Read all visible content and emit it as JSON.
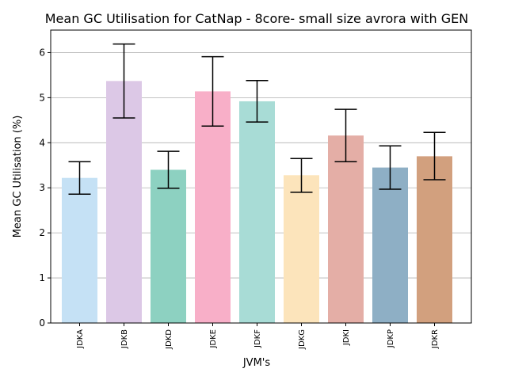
{
  "chart_data": {
    "type": "bar",
    "title": "Mean GC Utilisation for CatNap - 8core- small size avrora with GEN",
    "xlabel": "JVM's",
    "ylabel": "Mean GC Utilisation (%)",
    "ylim": [
      0,
      6.5
    ],
    "yticks": [
      0,
      1,
      2,
      3,
      4,
      5,
      6
    ],
    "grid": "horizontal",
    "categories": [
      "JDKA",
      "JDKB",
      "JDKD",
      "JDKE",
      "JDKF",
      "JDKG",
      "JDKI",
      "JDKP",
      "JDKR"
    ],
    "values": [
      3.22,
      5.37,
      3.4,
      5.14,
      4.92,
      3.28,
      4.16,
      3.45,
      3.7
    ],
    "error_low": [
      2.86,
      4.55,
      2.99,
      4.37,
      4.46,
      2.9,
      3.58,
      2.97,
      3.18
    ],
    "error_high": [
      3.58,
      6.19,
      3.81,
      5.91,
      5.38,
      3.65,
      4.74,
      3.93,
      4.23
    ],
    "colors": [
      "#c5e1f5",
      "#dcc8e6",
      "#8dd1c1",
      "#f8afc8",
      "#a8dcd6",
      "#fce4bb",
      "#e4aea6",
      "#8eafc5",
      "#d2a07e"
    ]
  }
}
